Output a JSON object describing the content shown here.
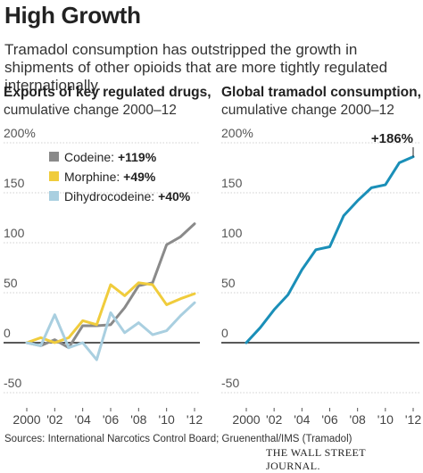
{
  "header": {
    "title": "High Growth",
    "subtitle": "Tramadol consumption has outstripped the growth in shipments of other opioids that are more tightly regulated internationally."
  },
  "footer": {
    "source": "Sources: International Narcotics Control Board; Gruenenthal/IMS (Tramadol)",
    "brand": "THE WALL STREET JOURNAL."
  },
  "colors": {
    "codeine": "#8a8a8a",
    "morphine": "#f0cc3c",
    "dihydrocodeine": "#a9cfe0",
    "tramadol": "#1a8fb8",
    "grid": "#d0d0d0",
    "zero_line": "#222222"
  },
  "chart_data": [
    {
      "type": "line",
      "title": "Exports of key regulated drugs,",
      "subtitle": "cumulative change 2000–12",
      "ytick_labels": [
        "200%",
        "150",
        "100",
        "50",
        "0",
        "-50"
      ],
      "yticks": [
        200,
        150,
        100,
        50,
        0,
        -50
      ],
      "xtick_labels": [
        "2000",
        "'02",
        "'04",
        "'06",
        "'08",
        "'10",
        "'12"
      ],
      "xticks": [
        2000,
        2002,
        2004,
        2006,
        2008,
        2010,
        2012
      ],
      "ylim": [
        -50,
        200
      ],
      "xlim": [
        2000,
        2012
      ],
      "grid": true,
      "legend_position": "top-left",
      "x": [
        2000,
        2001,
        2002,
        2003,
        2004,
        2005,
        2006,
        2007,
        2008,
        2009,
        2010,
        2011,
        2012
      ],
      "series": [
        {
          "name": "Codeine",
          "label": "+119%",
          "color_key": "codeine",
          "values": [
            0,
            -3,
            3,
            -5,
            17,
            17,
            18,
            35,
            57,
            60,
            98,
            106,
            119
          ]
        },
        {
          "name": "Morphine",
          "label": "+49%",
          "color_key": "morphine",
          "values": [
            0,
            5,
            0,
            5,
            22,
            18,
            58,
            47,
            60,
            58,
            38,
            44,
            49
          ]
        },
        {
          "name": "Dihydrocodeine",
          "label": "+40%",
          "color_key": "dihydrocodeine",
          "values": [
            0,
            -3,
            28,
            -5,
            0,
            -17,
            30,
            10,
            20,
            8,
            12,
            27,
            40
          ]
        }
      ]
    },
    {
      "type": "line",
      "title": "Global tramadol consumption,",
      "subtitle": "cumulative change 2000–12",
      "ytick_labels": [
        "200%",
        "150",
        "100",
        "50",
        "0",
        "-50"
      ],
      "yticks": [
        200,
        150,
        100,
        50,
        0,
        -50
      ],
      "xtick_labels": [
        "2000",
        "'02",
        "'04",
        "'06",
        "'08",
        "'10",
        "'12"
      ],
      "xticks": [
        2000,
        2002,
        2004,
        2006,
        2008,
        2010,
        2012
      ],
      "ylim": [
        -50,
        200
      ],
      "xlim": [
        2000,
        2012
      ],
      "grid": true,
      "x": [
        2000,
        2001,
        2002,
        2003,
        2004,
        2005,
        2006,
        2007,
        2008,
        2009,
        2010,
        2011,
        2012
      ],
      "series": [
        {
          "name": "Tramadol",
          "label": "+186%",
          "color_key": "tramadol",
          "values": [
            0,
            15,
            33,
            48,
            73,
            93,
            96,
            127,
            142,
            155,
            158,
            180,
            186
          ]
        }
      ]
    }
  ]
}
